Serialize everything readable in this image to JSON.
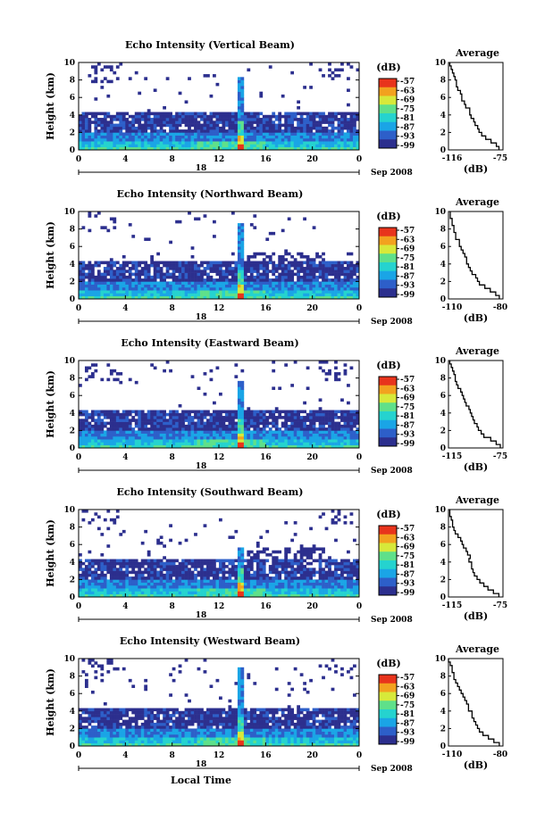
{
  "chart_data": [
    {
      "type": "heatmap",
      "title": "Echo Intensity (Vertical Beam)",
      "ylabel": "Height (km)",
      "xlim": [
        0,
        24
      ],
      "ylim": [
        0,
        10
      ],
      "x_ticks": [
        "0",
        "4",
        "8",
        "12",
        "16",
        "20",
        "0"
      ],
      "y_ticks": [
        "0",
        "2",
        "4",
        "6",
        "8",
        "10"
      ],
      "date_day": "18",
      "date_month": "Sep 2008",
      "colorbar": {
        "label": "(dB)",
        "ticks": [
          "-57",
          "-63",
          "-69",
          "-75",
          "-81",
          "-87",
          "-93",
          "-99"
        ]
      },
      "profile": {
        "title": "Average",
        "xlabel": "(dB)",
        "x_tick_labels": [
          "-116",
          "-75"
        ],
        "xlim": [
          -116,
          -75
        ],
        "heights": [
          0.2,
          0.6,
          1.0,
          1.4,
          1.8,
          2.2,
          2.6,
          3.0,
          3.4,
          3.8,
          4.2,
          4.6,
          5.0,
          5.4,
          5.8,
          6.2,
          6.6,
          7.0,
          7.4,
          7.8,
          8.2,
          8.6,
          9.0,
          9.4,
          9.8
        ],
        "values": [
          -78,
          -80,
          -84,
          -88,
          -91,
          -93,
          -94,
          -96,
          -97,
          -99,
          -100,
          -100,
          -103,
          -104,
          -106,
          -106,
          -107,
          -109,
          -110,
          -110,
          -111,
          -112,
          -113,
          -114,
          -115
        ]
      },
      "map_params": {
        "clear_top": 4.2,
        "extra_top": 0,
        "low_noise_top": 0,
        "spike_top": 8.2,
        "patch_left": true,
        "patch_right": true
      }
    },
    {
      "type": "heatmap",
      "title": "Echo Intensity (Northward Beam)",
      "ylabel": "Height (km)",
      "xlim": [
        0,
        24
      ],
      "ylim": [
        0,
        10
      ],
      "x_ticks": [
        "0",
        "4",
        "8",
        "12",
        "16",
        "20",
        "0"
      ],
      "y_ticks": [
        "0",
        "2",
        "4",
        "6",
        "8",
        "10"
      ],
      "date_day": "18",
      "date_month": "Sep 2008",
      "colorbar": {
        "label": "(dB)",
        "ticks": [
          "-57",
          "-63",
          "-69",
          "-75",
          "-81",
          "-87",
          "-93",
          "-99"
        ]
      },
      "profile": {
        "title": "Average",
        "xlabel": "(dB)",
        "x_tick_labels": [
          "-110",
          "-80"
        ],
        "xlim": [
          -110,
          -80
        ],
        "heights": [
          0.2,
          0.6,
          1.0,
          1.4,
          1.8,
          2.2,
          2.6,
          3.0,
          3.4,
          3.8,
          4.2,
          4.6,
          5.0,
          5.4,
          5.8,
          6.2,
          6.6,
          7.0,
          7.4,
          7.8,
          8.2,
          8.6,
          9.0,
          9.4,
          9.8
        ],
        "values": [
          -82,
          -84,
          -87,
          -90,
          -93,
          -94,
          -95,
          -97,
          -98,
          -99,
          -100,
          -100,
          -101,
          -102,
          -103,
          -104,
          -104,
          -106,
          -106,
          -107,
          -107,
          -108,
          -108,
          -109,
          -109
        ]
      },
      "map_params": {
        "clear_top": 4.4,
        "extra_top": 5.2,
        "low_noise_top": 0,
        "spike_top": 8.6,
        "patch_left": true,
        "patch_right": false
      }
    },
    {
      "type": "heatmap",
      "title": "Echo Intensity (Eastward Beam)",
      "ylabel": "Height (km)",
      "xlim": [
        0,
        24
      ],
      "ylim": [
        0,
        10
      ],
      "x_ticks": [
        "0",
        "4",
        "8",
        "12",
        "16",
        "20",
        "0"
      ],
      "y_ticks": [
        "0",
        "2",
        "4",
        "6",
        "8",
        "10"
      ],
      "date_day": "18",
      "date_month": "Sep 2008",
      "colorbar": {
        "label": "(dB)",
        "ticks": [
          "-57",
          "-63",
          "-69",
          "-75",
          "-81",
          "-87",
          "-93",
          "-99"
        ]
      },
      "profile": {
        "title": "Average",
        "xlabel": "(dB)",
        "x_tick_labels": [
          "-115",
          "-75"
        ],
        "xlim": [
          -115,
          -75
        ],
        "heights": [
          0.2,
          0.6,
          1.0,
          1.4,
          1.8,
          2.2,
          2.6,
          3.0,
          3.4,
          3.8,
          4.2,
          4.6,
          5.0,
          5.4,
          5.8,
          6.2,
          6.6,
          7.0,
          7.4,
          7.8,
          8.2,
          8.6,
          9.0,
          9.4,
          9.8
        ],
        "values": [
          -77,
          -80,
          -84,
          -89,
          -91,
          -93,
          -94,
          -96,
          -97,
          -98,
          -99,
          -100,
          -102,
          -103,
          -104,
          -105,
          -106,
          -108,
          -109,
          -110,
          -110,
          -111,
          -112,
          -113,
          -114
        ]
      },
      "map_params": {
        "clear_top": 4.2,
        "extra_top": 0,
        "low_noise_top": 0,
        "spike_top": 7.6,
        "patch_left": true,
        "patch_right": true
      }
    },
    {
      "type": "heatmap",
      "title": "Echo Intensity (Southward Beam)",
      "ylabel": "Height (km)",
      "xlim": [
        0,
        24
      ],
      "ylim": [
        0,
        10
      ],
      "x_ticks": [
        "0",
        "4",
        "8",
        "12",
        "16",
        "20",
        "0"
      ],
      "y_ticks": [
        "0",
        "2",
        "4",
        "6",
        "8",
        "10"
      ],
      "date_day": "18",
      "date_month": "Sep 2008",
      "colorbar": {
        "label": "(dB)",
        "ticks": [
          "-57",
          "-63",
          "-69",
          "-75",
          "-81",
          "-87",
          "-93",
          "-99"
        ]
      },
      "profile": {
        "title": "Average",
        "xlabel": "(dB)",
        "x_tick_labels": [
          "-115",
          "-75"
        ],
        "xlim": [
          -115,
          -75
        ],
        "heights": [
          0.2,
          0.6,
          1.0,
          1.4,
          1.8,
          2.2,
          2.6,
          3.0,
          3.4,
          3.8,
          4.2,
          4.6,
          5.0,
          5.4,
          5.8,
          6.2,
          6.6,
          7.0,
          7.4,
          7.8,
          8.2,
          8.6,
          9.0,
          9.4,
          9.8
        ],
        "values": [
          -78,
          -82,
          -86,
          -89,
          -92,
          -94,
          -96,
          -97,
          -98,
          -98,
          -100,
          -99,
          -101,
          -102,
          -104,
          -105,
          -106,
          -108,
          -110,
          -111,
          -112,
          -112,
          -113,
          -114,
          -114
        ]
      },
      "map_params": {
        "clear_top": 4.4,
        "extra_top": 5.6,
        "low_noise_top": 0,
        "spike_top": 5.6,
        "patch_left": true,
        "patch_right": true
      }
    },
    {
      "type": "heatmap",
      "title": "Echo Intensity (Westward Beam)",
      "ylabel": "Height (km)",
      "xlabel": "Local Time",
      "xlim": [
        0,
        24
      ],
      "ylim": [
        0,
        10
      ],
      "x_ticks": [
        "0",
        "4",
        "8",
        "12",
        "16",
        "20",
        "0"
      ],
      "y_ticks": [
        "0",
        "2",
        "4",
        "6",
        "8",
        "10"
      ],
      "date_day": "18",
      "date_month": "Sep 2008",
      "colorbar": {
        "label": "(dB)",
        "ticks": [
          "-57",
          "-63",
          "-69",
          "-75",
          "-81",
          "-87",
          "-93",
          "-99"
        ]
      },
      "profile": {
        "title": "Average",
        "xlabel": "(dB)",
        "x_tick_labels": [
          "-110",
          "-80"
        ],
        "xlim": [
          -110,
          -80
        ],
        "heights": [
          0.2,
          0.6,
          1.0,
          1.4,
          1.8,
          2.2,
          2.6,
          3.0,
          3.4,
          3.8,
          4.2,
          4.6,
          5.0,
          5.4,
          5.8,
          6.2,
          6.6,
          7.0,
          7.4,
          7.8,
          8.2,
          8.6,
          9.0,
          9.4,
          9.8
        ],
        "values": [
          -82,
          -85,
          -88,
          -91,
          -93,
          -94,
          -95,
          -96,
          -97,
          -97,
          -99,
          -99,
          -100,
          -101,
          -102,
          -103,
          -104,
          -105,
          -106,
          -107,
          -107,
          -108,
          -108,
          -109,
          -110
        ]
      },
      "map_params": {
        "clear_top": 4.4,
        "extra_top": 0,
        "low_noise_top": 0,
        "spike_top": 9.0,
        "patch_left": true,
        "patch_right": true
      }
    }
  ],
  "colors": {
    "palette": [
      "#ffffff",
      "#2c2f8e",
      "#2d5fc9",
      "#1aa5e6",
      "#25d3cf",
      "#5fe08a",
      "#d7e93a",
      "#f2a21f",
      "#e8341c"
    ]
  }
}
